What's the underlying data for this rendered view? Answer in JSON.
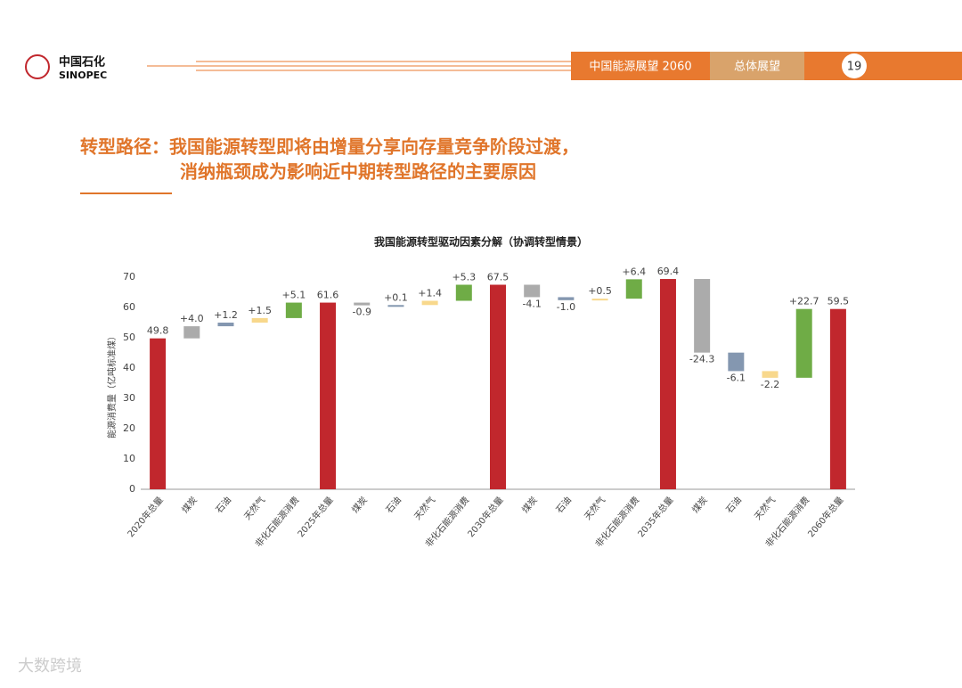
{
  "header": {
    "logo_cn": "中国石化",
    "logo_en": "SINOPEC",
    "section1": "中国能源展望 2060",
    "section2": "总体展望",
    "page": "19"
  },
  "heading": {
    "line1": "转型路径：我国能源转型即将由增量分享向存量竞争阶段过渡，",
    "line2": "消纳瓶颈成为影响近中期转型路径的主要原因"
  },
  "watermark": "大数跨境",
  "chart_data": {
    "type": "waterfall",
    "title": "我国能源转型驱动因素分解（协调转型情景）",
    "y_label": "能源消费量（亿吨标准煤）",
    "categories": [
      "2020年总量",
      "煤炭",
      "石油",
      "天然气",
      "非化石能源消费",
      "2025年总量",
      "煤炭",
      "石油",
      "天然气",
      "非化石能源消费",
      "2030年总量",
      "煤炭",
      "石油",
      "天然气",
      "非化石能源消费",
      "2035年总量",
      "煤炭",
      "石油",
      "天然气",
      "非化石能源消费",
      "2060年总量"
    ],
    "values": [
      49.8,
      4.0,
      1.2,
      1.5,
      5.1,
      61.6,
      -0.9,
      0.1,
      1.4,
      5.3,
      67.5,
      -4.1,
      -1.0,
      0.5,
      6.4,
      69.4,
      -24.3,
      -6.1,
      -2.2,
      22.7,
      59.5
    ],
    "value_labels": [
      null,
      "+4.0",
      "+1.2",
      "+1.5",
      "+5.1",
      null,
      "-0.9",
      "+0.1",
      "+1.4",
      "+5.3",
      null,
      "-4.1",
      "-1.0",
      "+0.5",
      "+6.4",
      null,
      "-24.3",
      "-6.1",
      "-2.2",
      "+22.7",
      null
    ],
    "colors": [
      "#c1272d",
      "#ababab",
      "#8497b0",
      "#f8d88c",
      "#6fac46",
      "#c1272d",
      "#ababab",
      "#8497b0",
      "#f8d88c",
      "#6fac46",
      "#c1272d",
      "#ababab",
      "#8497b0",
      "#f8d88c",
      "#6fac46",
      "#c1272d",
      "#ababab",
      "#8497b0",
      "#f8d88c",
      "#6fac46",
      "#c1272d"
    ],
    "ylim": [
      0,
      70
    ],
    "yticks": [
      0,
      10,
      20,
      30,
      40,
      50,
      60,
      70
    ]
  }
}
